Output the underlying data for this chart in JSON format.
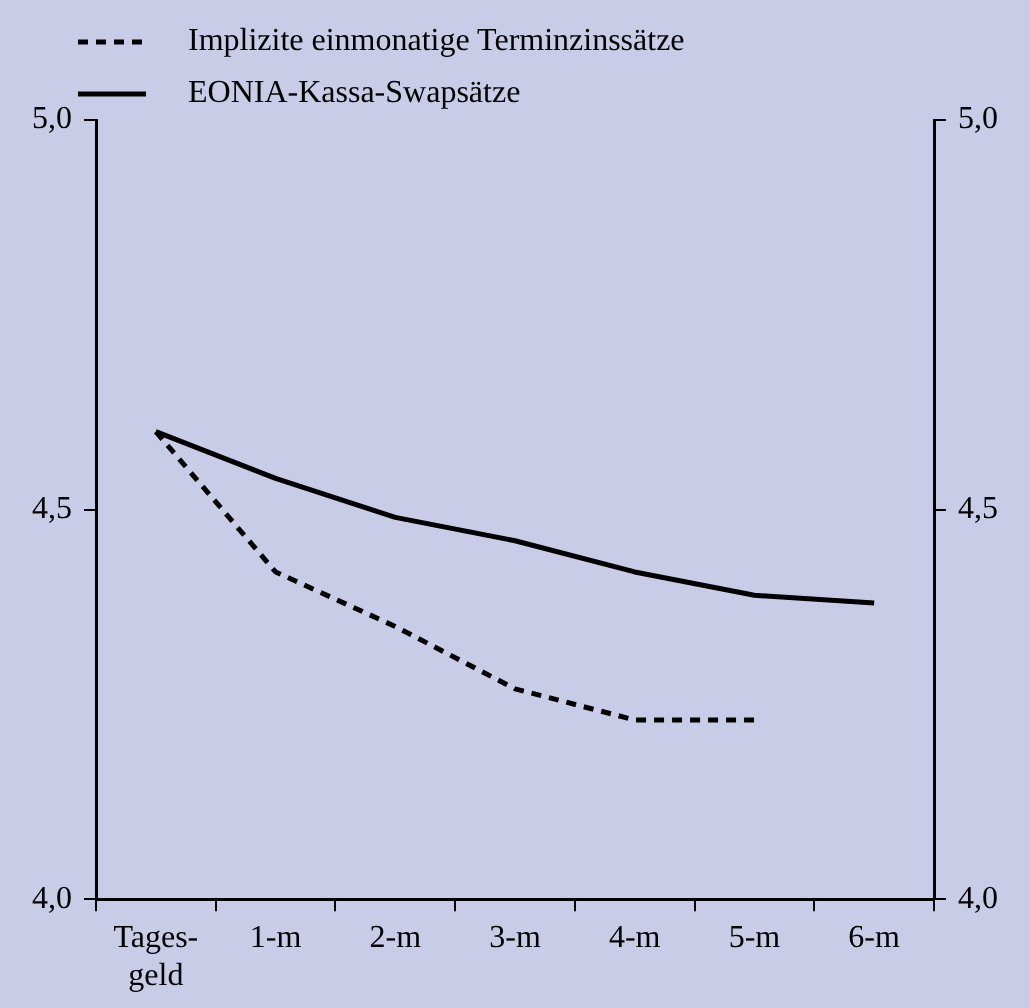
{
  "chart_data": {
    "type": "line",
    "categories": [
      "Tages-\ngeld",
      "1-m",
      "2-m",
      "3-m",
      "4-m",
      "5-m",
      "6-m"
    ],
    "series": [
      {
        "name": "Implizite einmonatige Terminzinssätze",
        "color": "#000000",
        "line_style": "dashed",
        "values": [
          4.6,
          4.42,
          4.35,
          4.27,
          4.23,
          4.23,
          null
        ]
      },
      {
        "name": "EONIA-Kassa-Swapsätze",
        "color": "#000000",
        "line_style": "solid",
        "values": [
          4.6,
          4.54,
          4.49,
          4.46,
          4.42,
          4.39,
          4.38
        ]
      }
    ],
    "ylim": [
      4.0,
      5.0
    ],
    "yticks": [
      {
        "value": 4.0,
        "label": "4,0"
      },
      {
        "value": 4.5,
        "label": "4,5"
      },
      {
        "value": 5.0,
        "label": "5,0"
      }
    ],
    "y2lim": [
      4.0,
      5.0
    ],
    "y2ticks": [
      {
        "value": 4.0,
        "label": "4,0"
      },
      {
        "value": 4.5,
        "label": "4,5"
      },
      {
        "value": 5.0,
        "label": "5,0"
      }
    ],
    "grid": false,
    "legend": "top left",
    "marker": "none"
  }
}
